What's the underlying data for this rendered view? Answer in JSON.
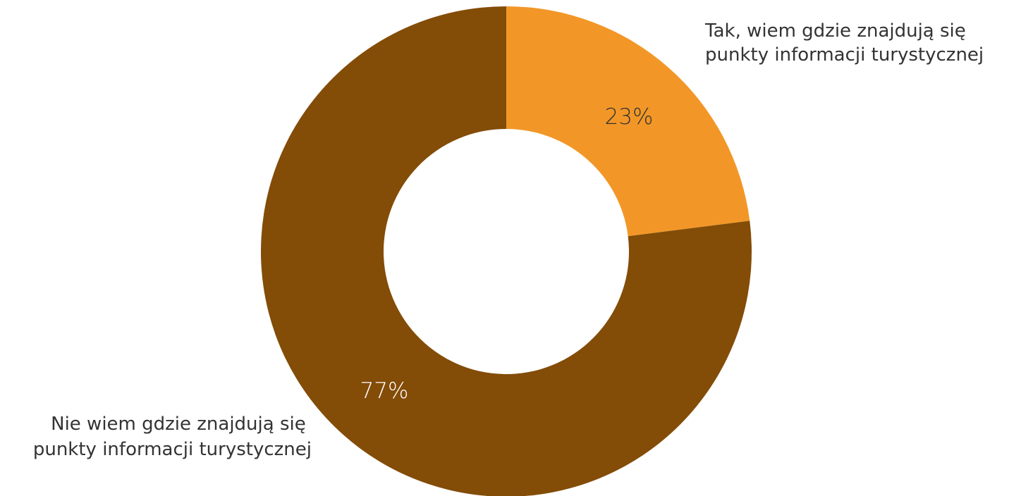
{
  "chart_data": {
    "type": "pie",
    "donut": true,
    "start_angle_deg": 0,
    "direction": "clockwise",
    "slices": [
      {
        "label_lines": [
          "Tak, wiem gdzie znajdują się",
          "punkty informacji turystycznej"
        ],
        "value": 23,
        "value_label": "23%",
        "color": "#F29727",
        "value_text_color": "#333333"
      },
      {
        "label_lines": [
          "Nie wiem gdzie znajdują się",
          "punkty informacji turystycznej"
        ],
        "value": 77,
        "value_label": "77%",
        "color": "#834C07",
        "value_text_color": "#FFFFFF"
      }
    ],
    "legend": "outside-labels",
    "title": ""
  }
}
